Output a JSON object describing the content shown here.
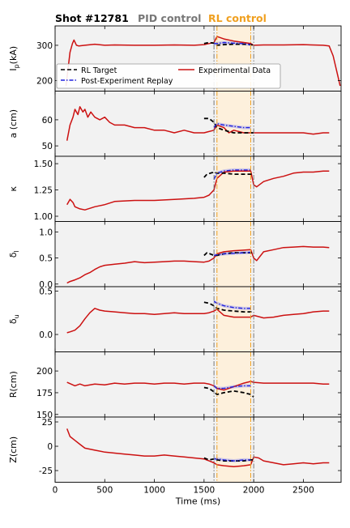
{
  "header": {
    "shot_label": "Shot #12781",
    "pid_label": "PID control",
    "rl_label": "RL control",
    "pid_color": "#777777",
    "rl_color": "#f0a020"
  },
  "xaxis": {
    "label": "Time (ms)",
    "range": [
      0,
      2880
    ],
    "ticks": [
      0,
      500,
      1000,
      1500,
      2000,
      2500
    ]
  },
  "markers": {
    "pid_start_ms": 1600,
    "rl_start_ms": 1630,
    "rl_end_ms": 1970,
    "pid_end_ms": 2000,
    "rl_region_ms": [
      1630,
      1970
    ]
  },
  "legend": {
    "placement": "panel-1-lower-left",
    "entries": [
      {
        "label": "RL Target",
        "color": "#000000",
        "style": "dashed"
      },
      {
        "label": "Post-Experiment Replay",
        "color": "#2020dd",
        "style": "dashdot"
      },
      {
        "label": "Experimental Data",
        "color": "#cc1111",
        "style": "solid"
      }
    ]
  },
  "colors": {
    "experimental": "#cc1111",
    "target": "#000000",
    "replay": "#2020dd",
    "replay_band": "#9999ee",
    "panel_bg": "#f2f2f2",
    "rl_region": "#fdf0dc"
  },
  "chart_data": [
    {
      "type": "line",
      "ylabel": "I_p(kA)",
      "ylim": [
        170,
        355
      ],
      "yticks": [
        200,
        300
      ],
      "series": [
        {
          "role": "experimental",
          "x": [
            110,
            150,
            175,
            190,
            215,
            240,
            300,
            400,
            500,
            600,
            800,
            1000,
            1200,
            1400,
            1500,
            1550,
            1600,
            1630,
            1700,
            1800,
            1900,
            1970,
            2000,
            2100,
            2300,
            2500,
            2700,
            2760,
            2800,
            2850,
            2870
          ],
          "y": [
            185,
            280,
            305,
            315,
            300,
            298,
            300,
            303,
            300,
            301,
            300,
            300,
            301,
            300,
            302,
            305,
            308,
            325,
            318,
            312,
            308,
            305,
            300,
            301,
            301,
            302,
            300,
            298,
            270,
            210,
            185
          ]
        },
        {
          "role": "target",
          "x": [
            1500,
            1550,
            1600,
            1630,
            1700,
            1800,
            1900,
            1970,
            2000
          ],
          "y": [
            305,
            308,
            306,
            300,
            302,
            303,
            303,
            302,
            300
          ]
        },
        {
          "role": "replay",
          "x": [
            1600,
            1630,
            1700,
            1800,
            1900,
            1970
          ],
          "y": [
            305,
            305,
            308,
            306,
            305,
            302
          ]
        }
      ]
    },
    {
      "type": "line",
      "ylabel": "a (cm)",
      "ylim": [
        46,
        71
      ],
      "yticks": [
        50,
        60
      ],
      "series": [
        {
          "role": "experimental",
          "x": [
            120,
            150,
            180,
            200,
            230,
            250,
            280,
            300,
            330,
            360,
            400,
            450,
            500,
            550,
            600,
            700,
            800,
            900,
            1000,
            1100,
            1200,
            1300,
            1400,
            1500,
            1600,
            1630,
            1700,
            1750,
            1800,
            1900,
            1970,
            2000,
            2100,
            2200,
            2300,
            2400,
            2500,
            2600,
            2700,
            2760
          ],
          "y": [
            52,
            58,
            61,
            64,
            62,
            65,
            63,
            64,
            61,
            63,
            61,
            60,
            61,
            59,
            58,
            58,
            57,
            57,
            56,
            56,
            55,
            56,
            55,
            55,
            56,
            58,
            57,
            55,
            56,
            55,
            55,
            55,
            55,
            55,
            55,
            55,
            55,
            54.5,
            55,
            55
          ]
        },
        {
          "role": "target",
          "x": [
            1500,
            1550,
            1600,
            1630,
            1700,
            1800,
            1900,
            1970,
            2000
          ],
          "y": [
            60.5,
            60.5,
            59,
            57,
            56,
            55,
            55,
            55,
            55
          ]
        },
        {
          "role": "replay",
          "x": [
            1600,
            1630,
            1700,
            1800,
            1900,
            1970
          ],
          "y": [
            57,
            58.5,
            58,
            57.5,
            57,
            57
          ]
        }
      ]
    },
    {
      "type": "line",
      "ylabel": "κ",
      "ylim": [
        0.95,
        1.57
      ],
      "yticks": [
        1.0,
        1.25,
        1.5
      ],
      "ytick_labels": [
        "1.00",
        "1.25",
        "1.50"
      ],
      "series": [
        {
          "role": "experimental",
          "x": [
            120,
            150,
            180,
            200,
            250,
            300,
            400,
            500,
            600,
            800,
            1000,
            1200,
            1400,
            1500,
            1550,
            1600,
            1630,
            1700,
            1800,
            1900,
            1970,
            2000,
            2030,
            2100,
            2200,
            2300,
            2400,
            2500,
            2600,
            2700,
            2760
          ],
          "y": [
            1.11,
            1.16,
            1.13,
            1.09,
            1.07,
            1.06,
            1.09,
            1.11,
            1.14,
            1.15,
            1.15,
            1.16,
            1.17,
            1.18,
            1.2,
            1.25,
            1.36,
            1.42,
            1.43,
            1.43,
            1.43,
            1.3,
            1.28,
            1.33,
            1.36,
            1.38,
            1.41,
            1.42,
            1.42,
            1.43,
            1.43
          ]
        },
        {
          "role": "target",
          "x": [
            1500,
            1530,
            1600,
            1630,
            1700,
            1800,
            1900,
            1970,
            2000
          ],
          "y": [
            1.37,
            1.4,
            1.42,
            1.41,
            1.41,
            1.4,
            1.4,
            1.4,
            1.39
          ]
        },
        {
          "role": "replay",
          "x": [
            1600,
            1630,
            1700,
            1800,
            1900,
            1970
          ],
          "y": [
            1.35,
            1.41,
            1.43,
            1.44,
            1.44,
            1.44
          ]
        }
      ]
    },
    {
      "type": "line",
      "ylabel": "δ_l",
      "ylim": [
        -0.05,
        1.2
      ],
      "yticks": [
        0.0,
        0.5,
        1.0
      ],
      "ytick_labels": [
        "0.0",
        "0.5",
        "1.0"
      ],
      "series": [
        {
          "role": "experimental",
          "x": [
            120,
            150,
            200,
            250,
            300,
            350,
            400,
            450,
            500,
            600,
            700,
            800,
            900,
            1000,
            1100,
            1200,
            1300,
            1400,
            1500,
            1550,
            1600,
            1630,
            1700,
            1800,
            1900,
            1970,
            2000,
            2030,
            2100,
            2200,
            2300,
            2400,
            2500,
            2600,
            2700,
            2760
          ],
          "y": [
            0.02,
            0.05,
            0.08,
            0.12,
            0.18,
            0.22,
            0.28,
            0.33,
            0.36,
            0.38,
            0.4,
            0.43,
            0.41,
            0.42,
            0.43,
            0.44,
            0.44,
            0.43,
            0.42,
            0.44,
            0.5,
            0.58,
            0.62,
            0.64,
            0.65,
            0.66,
            0.5,
            0.45,
            0.62,
            0.66,
            0.7,
            0.71,
            0.72,
            0.71,
            0.71,
            0.7
          ]
        },
        {
          "role": "target",
          "x": [
            1500,
            1530,
            1560,
            1600,
            1630,
            1700,
            1800,
            1900,
            1970,
            2000
          ],
          "y": [
            0.55,
            0.6,
            0.58,
            0.55,
            0.55,
            0.58,
            0.6,
            0.6,
            0.6,
            0.6
          ]
        },
        {
          "role": "replay",
          "x": [
            1600,
            1630,
            1700,
            1800,
            1900,
            1970
          ],
          "y": [
            0.55,
            0.56,
            0.58,
            0.59,
            0.6,
            0.61
          ]
        }
      ]
    },
    {
      "type": "line",
      "ylabel": "δ_u",
      "ylim": [
        -0.2,
        0.55
      ],
      "yticks": [
        0.0,
        0.5
      ],
      "ytick_labels": [
        "0.0",
        "0.5"
      ],
      "series": [
        {
          "role": "experimental",
          "x": [
            120,
            150,
            200,
            250,
            300,
            350,
            400,
            450,
            500,
            600,
            700,
            800,
            900,
            1000,
            1100,
            1200,
            1300,
            1400,
            1500,
            1550,
            1600,
            1630,
            1700,
            1800,
            1900,
            1970,
            2000,
            2100,
            2200,
            2300,
            2400,
            2500,
            2600,
            2700,
            2760
          ],
          "y": [
            0.02,
            0.03,
            0.05,
            0.1,
            0.18,
            0.25,
            0.3,
            0.28,
            0.27,
            0.26,
            0.25,
            0.24,
            0.24,
            0.23,
            0.24,
            0.25,
            0.24,
            0.24,
            0.24,
            0.25,
            0.27,
            0.29,
            0.22,
            0.2,
            0.2,
            0.2,
            0.22,
            0.19,
            0.2,
            0.22,
            0.23,
            0.24,
            0.26,
            0.27,
            0.27
          ]
        },
        {
          "role": "target",
          "x": [
            1500,
            1550,
            1600,
            1630,
            1700,
            1800,
            1900,
            1970,
            2000
          ],
          "y": [
            0.37,
            0.36,
            0.33,
            0.3,
            0.28,
            0.27,
            0.26,
            0.26,
            0.26
          ]
        },
        {
          "role": "replay",
          "x": [
            1600,
            1630,
            1700,
            1800,
            1900,
            1970
          ],
          "y": [
            0.38,
            0.36,
            0.33,
            0.31,
            0.3,
            0.3
          ]
        }
      ]
    },
    {
      "type": "line",
      "ylabel": "R(cm)",
      "ylim": [
        147,
        222
      ],
      "yticks": [
        150,
        175,
        200
      ],
      "series": [
        {
          "role": "experimental",
          "x": [
            120,
            200,
            250,
            300,
            400,
            500,
            600,
            700,
            800,
            900,
            1000,
            1100,
            1200,
            1300,
            1400,
            1500,
            1550,
            1600,
            1630,
            1700,
            1800,
            1900,
            1970,
            2000,
            2100,
            2200,
            2300,
            2400,
            2500,
            2600,
            2700,
            2760
          ],
          "y": [
            187,
            183,
            185,
            183,
            185,
            184,
            186,
            185,
            186,
            186,
            185,
            186,
            186,
            185,
            186,
            186,
            185,
            183,
            180,
            178,
            182,
            186,
            188,
            187,
            186,
            186,
            186,
            186,
            186,
            186,
            185,
            185
          ]
        },
        {
          "role": "target",
          "x": [
            1500,
            1550,
            1600,
            1630,
            1700,
            1800,
            1900,
            1970,
            2000
          ],
          "y": [
            181,
            180,
            176,
            173,
            175,
            177,
            175,
            173,
            170
          ]
        },
        {
          "role": "replay",
          "x": [
            1600,
            1630,
            1700,
            1800,
            1900,
            1970
          ],
          "y": [
            183,
            180,
            180,
            182,
            183,
            183
          ]
        }
      ]
    },
    {
      "type": "line",
      "ylabel": "Z(cm)",
      "ylim": [
        -37,
        30
      ],
      "yticks": [
        -25,
        0,
        25
      ],
      "series": [
        {
          "role": "experimental",
          "x": [
            120,
            150,
            200,
            250,
            300,
            400,
            500,
            600,
            700,
            800,
            900,
            1000,
            1100,
            1200,
            1300,
            1400,
            1500,
            1550,
            1600,
            1630,
            1700,
            1800,
            1900,
            1970,
            2000,
            2050,
            2100,
            2200,
            2300,
            2400,
            2500,
            2600,
            2700,
            2760
          ],
          "y": [
            18,
            10,
            6,
            2,
            -2,
            -4,
            -6,
            -7,
            -8,
            -9,
            -10,
            -10,
            -9,
            -10,
            -11,
            -12,
            -13,
            -15,
            -17,
            -19,
            -20,
            -21,
            -20,
            -19,
            -11,
            -12,
            -15,
            -17,
            -19,
            -18,
            -17,
            -18,
            -17,
            -17
          ]
        },
        {
          "role": "target",
          "x": [
            1500,
            1550,
            1600,
            1630,
            1700,
            1800,
            1900,
            1970,
            2000
          ],
          "y": [
            -12,
            -14,
            -13,
            -14,
            -15,
            -15,
            -15,
            -14,
            -14
          ]
        },
        {
          "role": "replay",
          "x": [
            1600,
            1630,
            1700,
            1800,
            1900,
            1970
          ],
          "y": [
            -13,
            -13,
            -14,
            -15,
            -14,
            -14
          ]
        }
      ]
    }
  ]
}
